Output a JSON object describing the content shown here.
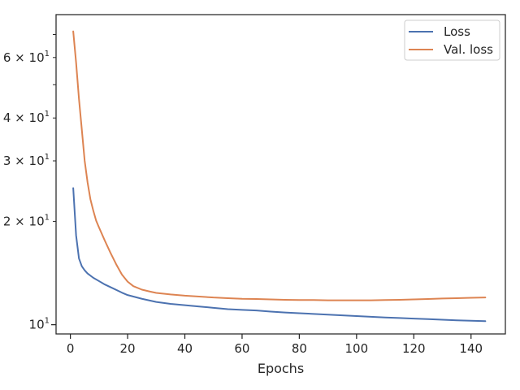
{
  "chart_data": {
    "type": "line",
    "title": "",
    "xlabel": "Epochs",
    "ylabel": "",
    "xlim": [
      -5,
      152
    ],
    "ylim": [
      9.4,
      80
    ],
    "yscale": "log",
    "grid": false,
    "legend_position": "top-right",
    "x_ticks": [
      0,
      20,
      40,
      60,
      80,
      100,
      120,
      140
    ],
    "x_tick_labels": [
      "0",
      "20",
      "40",
      "60",
      "80",
      "100",
      "120",
      "140"
    ],
    "y_major_ticks": [
      10
    ],
    "y_major_tick_labels": [
      {
        "base": "10",
        "exp": "1"
      }
    ],
    "y_minor_ticks": [
      20,
      30,
      40,
      60
    ],
    "y_minor_tick_labels": [
      {
        "mult": "2",
        "base": "10",
        "exp": "1"
      },
      {
        "mult": "3",
        "base": "10",
        "exp": "1"
      },
      {
        "mult": "4",
        "base": "10",
        "exp": "1"
      },
      {
        "mult": "6",
        "base": "10",
        "exp": "1"
      }
    ],
    "series": [
      {
        "name": "Loss",
        "color": "#4c72b0",
        "points": [
          [
            1,
            25.0
          ],
          [
            2,
            18.2
          ],
          [
            3,
            15.6
          ],
          [
            4,
            14.8
          ],
          [
            5,
            14.4
          ],
          [
            6,
            14.1
          ],
          [
            8,
            13.7
          ],
          [
            10,
            13.4
          ],
          [
            12,
            13.1
          ],
          [
            15,
            12.75
          ],
          [
            18,
            12.4
          ],
          [
            20,
            12.2
          ],
          [
            25,
            11.9
          ],
          [
            30,
            11.65
          ],
          [
            35,
            11.5
          ],
          [
            40,
            11.4
          ],
          [
            45,
            11.3
          ],
          [
            50,
            11.2
          ],
          [
            55,
            11.1
          ],
          [
            60,
            11.05
          ],
          [
            65,
            11.0
          ],
          [
            70,
            10.92
          ],
          [
            75,
            10.85
          ],
          [
            80,
            10.8
          ],
          [
            85,
            10.75
          ],
          [
            90,
            10.7
          ],
          [
            95,
            10.65
          ],
          [
            100,
            10.6
          ],
          [
            105,
            10.55
          ],
          [
            110,
            10.5
          ],
          [
            115,
            10.46
          ],
          [
            120,
            10.42
          ],
          [
            125,
            10.38
          ],
          [
            130,
            10.34
          ],
          [
            135,
            10.3
          ],
          [
            140,
            10.27
          ],
          [
            145,
            10.24
          ]
        ]
      },
      {
        "name": "Val. loss",
        "color": "#dd8452",
        "points": [
          [
            1,
            71.5
          ],
          [
            2,
            58.0
          ],
          [
            3,
            45.5
          ],
          [
            4,
            37.0
          ],
          [
            5,
            30.0
          ],
          [
            6,
            26.0
          ],
          [
            7,
            23.2
          ],
          [
            8,
            21.5
          ],
          [
            9,
            20.1
          ],
          [
            10,
            19.2
          ],
          [
            12,
            17.6
          ],
          [
            14,
            16.2
          ],
          [
            16,
            15.0
          ],
          [
            18,
            14.0
          ],
          [
            20,
            13.35
          ],
          [
            22,
            12.95
          ],
          [
            25,
            12.65
          ],
          [
            28,
            12.48
          ],
          [
            30,
            12.38
          ],
          [
            35,
            12.25
          ],
          [
            40,
            12.15
          ],
          [
            45,
            12.08
          ],
          [
            50,
            12.0
          ],
          [
            55,
            11.95
          ],
          [
            60,
            11.9
          ],
          [
            65,
            11.88
          ],
          [
            70,
            11.85
          ],
          [
            75,
            11.82
          ],
          [
            80,
            11.8
          ],
          [
            85,
            11.8
          ],
          [
            90,
            11.78
          ],
          [
            95,
            11.78
          ],
          [
            100,
            11.78
          ],
          [
            105,
            11.78
          ],
          [
            110,
            11.8
          ],
          [
            115,
            11.82
          ],
          [
            120,
            11.85
          ],
          [
            125,
            11.88
          ],
          [
            130,
            11.92
          ],
          [
            135,
            11.95
          ],
          [
            140,
            11.98
          ],
          [
            145,
            12.0
          ]
        ]
      }
    ]
  }
}
